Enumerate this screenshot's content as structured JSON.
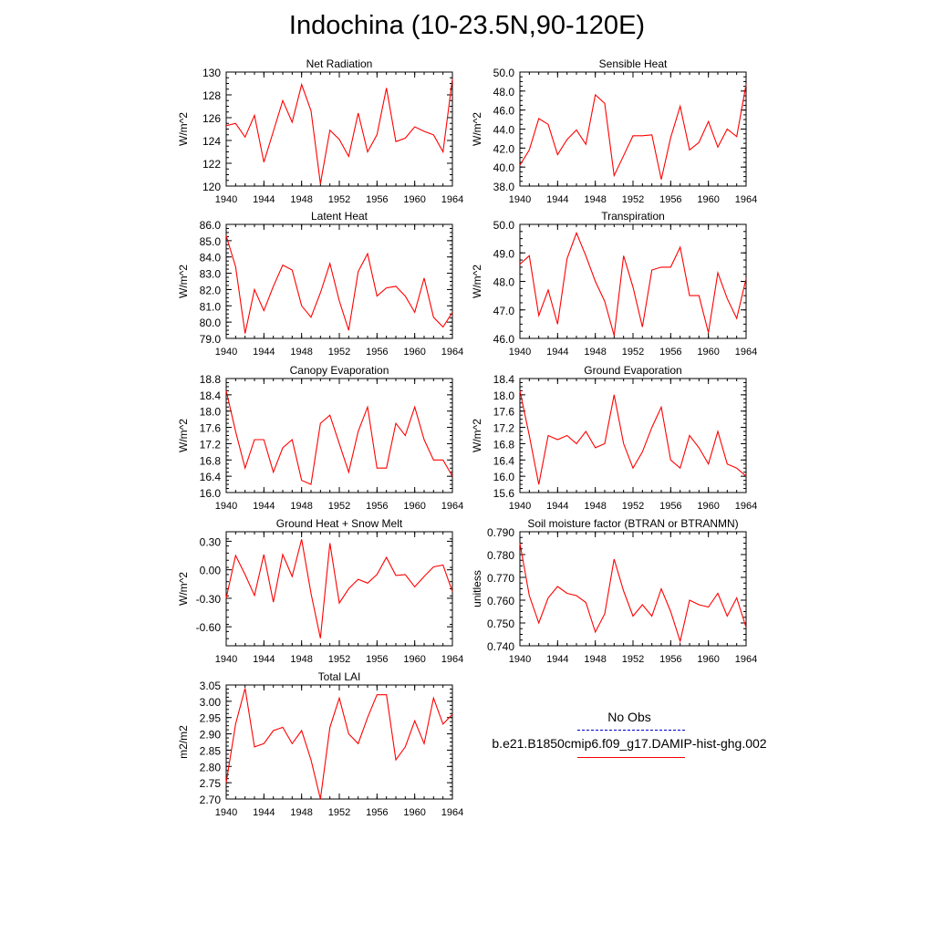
{
  "title": "Indochina (10-23.5N,90-120E)",
  "colors": {
    "series": "#ff0000",
    "obs": "#0000cc",
    "axis": "#000000"
  },
  "legend": {
    "obs_label": "No Obs",
    "model_label": "b.e21.B1850cmip6.f09_g17.DAMIP-hist-ghg.002"
  },
  "chart_data": [
    {
      "type": "line",
      "title": "Net Radiation",
      "ylabel": "W/m^2",
      "xlim": [
        1940,
        1964
      ],
      "xticks": [
        "1940",
        "1944",
        "1948",
        "1952",
        "1956",
        "1960",
        "1964"
      ],
      "ylim": [
        120,
        130
      ],
      "yticks": [
        "120",
        "122",
        "124",
        "126",
        "128",
        "130"
      ],
      "x": [
        1940,
        1941,
        1942,
        1943,
        1944,
        1945,
        1946,
        1947,
        1948,
        1949,
        1950,
        1951,
        1952,
        1953,
        1954,
        1955,
        1956,
        1957,
        1958,
        1959,
        1960,
        1961,
        1962,
        1963,
        1964
      ],
      "series": [
        {
          "values": [
            125.3,
            125.5,
            124.3,
            126.2,
            122.1,
            124.8,
            127.5,
            125.6,
            128.9,
            126.6,
            120.2,
            124.9,
            124.1,
            122.6,
            126.4,
            123.0,
            124.5,
            128.6,
            123.9,
            124.2,
            125.2,
            124.8,
            124.5,
            123.0,
            129.4
          ]
        }
      ]
    },
    {
      "type": "line",
      "title": "Sensible Heat",
      "ylabel": "W/m^2",
      "xlim": [
        1940,
        1964
      ],
      "xticks": [
        "1940",
        "1944",
        "1948",
        "1952",
        "1956",
        "1960",
        "1964"
      ],
      "ylim": [
        38,
        50
      ],
      "yticks": [
        "38.0",
        "40.0",
        "42.0",
        "44.0",
        "46.0",
        "48.0",
        "50.0"
      ],
      "x": [
        1940,
        1941,
        1942,
        1943,
        1944,
        1945,
        1946,
        1947,
        1948,
        1949,
        1950,
        1951,
        1952,
        1953,
        1954,
        1955,
        1956,
        1957,
        1958,
        1959,
        1960,
        1961,
        1962,
        1963,
        1964
      ],
      "series": [
        {
          "values": [
            40.2,
            41.8,
            45.1,
            44.5,
            41.3,
            42.9,
            43.9,
            42.4,
            47.6,
            46.7,
            39.1,
            41.2,
            43.3,
            43.3,
            43.4,
            38.7,
            43.1,
            46.4,
            41.8,
            42.6,
            44.8,
            42.1,
            44.0,
            43.2,
            48.7
          ]
        }
      ]
    },
    {
      "type": "line",
      "title": "Latent Heat",
      "ylabel": "W/m^2",
      "xlim": [
        1940,
        1964
      ],
      "xticks": [
        "1940",
        "1944",
        "1948",
        "1952",
        "1956",
        "1960",
        "1964"
      ],
      "ylim": [
        79,
        86
      ],
      "yticks": [
        "79.0",
        "80.0",
        "81.0",
        "82.0",
        "83.0",
        "84.0",
        "85.0",
        "86.0"
      ],
      "x": [
        1940,
        1941,
        1942,
        1943,
        1944,
        1945,
        1946,
        1947,
        1948,
        1949,
        1950,
        1951,
        1952,
        1953,
        1954,
        1955,
        1956,
        1957,
        1958,
        1959,
        1960,
        1961,
        1962,
        1963,
        1964
      ],
      "series": [
        {
          "values": [
            85.3,
            83.4,
            79.3,
            82.0,
            80.7,
            82.2,
            83.5,
            83.2,
            81.0,
            80.3,
            81.8,
            83.6,
            81.3,
            79.5,
            83.1,
            84.2,
            81.6,
            82.1,
            82.2,
            81.6,
            80.6,
            82.7,
            80.3,
            79.7,
            80.6
          ]
        }
      ]
    },
    {
      "type": "line",
      "title": "Transpiration",
      "ylabel": "W/m^2",
      "xlim": [
        1940,
        1964
      ],
      "xticks": [
        "1940",
        "1944",
        "1948",
        "1952",
        "1956",
        "1960",
        "1964"
      ],
      "ylim": [
        46,
        50
      ],
      "yticks": [
        "46.0",
        "47.0",
        "48.0",
        "49.0",
        "50.0"
      ],
      "x": [
        1940,
        1941,
        1942,
        1943,
        1944,
        1945,
        1946,
        1947,
        1948,
        1949,
        1950,
        1951,
        1952,
        1953,
        1954,
        1955,
        1956,
        1957,
        1958,
        1959,
        1960,
        1961,
        1962,
        1963,
        1964
      ],
      "series": [
        {
          "values": [
            48.6,
            48.9,
            46.8,
            47.7,
            46.5,
            48.8,
            49.7,
            48.9,
            48.0,
            47.3,
            46.1,
            48.9,
            47.8,
            46.4,
            48.4,
            48.5,
            48.5,
            49.2,
            47.5,
            47.5,
            46.2,
            48.3,
            47.4,
            46.7,
            48.1
          ]
        }
      ]
    },
    {
      "type": "line",
      "title": "Canopy Evaporation",
      "ylabel": "W/m^2",
      "xlim": [
        1940,
        1964
      ],
      "xticks": [
        "1940",
        "1944",
        "1948",
        "1952",
        "1956",
        "1960",
        "1964"
      ],
      "ylim": [
        16.0,
        18.8
      ],
      "yticks": [
        "16.0",
        "16.4",
        "16.8",
        "17.2",
        "17.6",
        "18.0",
        "18.4",
        "18.8"
      ],
      "x": [
        1940,
        1941,
        1942,
        1943,
        1944,
        1945,
        1946,
        1947,
        1948,
        1949,
        1950,
        1951,
        1952,
        1953,
        1954,
        1955,
        1956,
        1957,
        1958,
        1959,
        1960,
        1961,
        1962,
        1963,
        1964
      ],
      "series": [
        {
          "values": [
            18.5,
            17.5,
            16.6,
            17.3,
            17.3,
            16.5,
            17.1,
            17.3,
            16.3,
            16.2,
            17.7,
            17.9,
            17.2,
            16.5,
            17.5,
            18.1,
            16.6,
            16.6,
            17.7,
            17.4,
            18.1,
            17.3,
            16.8,
            16.8,
            16.4
          ]
        }
      ]
    },
    {
      "type": "line",
      "title": "Ground Evaporation",
      "ylabel": "W/m^2",
      "xlim": [
        1940,
        1964
      ],
      "xticks": [
        "1940",
        "1944",
        "1948",
        "1952",
        "1956",
        "1960",
        "1964"
      ],
      "ylim": [
        15.6,
        18.4
      ],
      "yticks": [
        "15.6",
        "16.0",
        "16.4",
        "16.8",
        "17.2",
        "17.6",
        "18.0",
        "18.4"
      ],
      "x": [
        1940,
        1941,
        1942,
        1943,
        1944,
        1945,
        1946,
        1947,
        1948,
        1949,
        1950,
        1951,
        1952,
        1953,
        1954,
        1955,
        1956,
        1957,
        1958,
        1959,
        1960,
        1961,
        1962,
        1963,
        1964
      ],
      "series": [
        {
          "values": [
            18.1,
            17.0,
            15.8,
            17.0,
            16.9,
            17.0,
            16.8,
            17.1,
            16.7,
            16.8,
            18.0,
            16.8,
            16.2,
            16.6,
            17.2,
            17.7,
            16.4,
            16.2,
            17.0,
            16.7,
            16.3,
            17.1,
            16.3,
            16.2,
            16.0
          ]
        }
      ]
    },
    {
      "type": "line",
      "title": "Ground Heat + Snow Melt",
      "ylabel": "W/m^2",
      "xlim": [
        1940,
        1964
      ],
      "xticks": [
        "1940",
        "1944",
        "1948",
        "1952",
        "1956",
        "1960",
        "1964"
      ],
      "ylim": [
        -0.8,
        0.4
      ],
      "yticks": [
        "-0.60",
        "-0.30",
        "0.00",
        "0.30"
      ],
      "ytick_values": [
        -0.6,
        -0.3,
        0.0,
        0.3
      ],
      "x": [
        1940,
        1941,
        1942,
        1943,
        1944,
        1945,
        1946,
        1947,
        1948,
        1949,
        1950,
        1951,
        1952,
        1953,
        1954,
        1955,
        1956,
        1957,
        1958,
        1959,
        1960,
        1961,
        1962,
        1963,
        1964
      ],
      "series": [
        {
          "values": [
            -0.3,
            0.15,
            -0.05,
            -0.27,
            0.16,
            -0.34,
            0.16,
            -0.07,
            0.32,
            -0.25,
            -0.72,
            0.28,
            -0.35,
            -0.2,
            -0.1,
            -0.14,
            -0.05,
            0.13,
            -0.06,
            -0.05,
            -0.18,
            -0.07,
            0.03,
            0.05,
            -0.23
          ]
        }
      ]
    },
    {
      "type": "line",
      "title": "Soil moisture factor (BTRAN or BTRANMN)",
      "ylabel": "unitless",
      "xlim": [
        1940,
        1964
      ],
      "xticks": [
        "1940",
        "1944",
        "1948",
        "1952",
        "1956",
        "1960",
        "1964"
      ],
      "ylim": [
        0.74,
        0.79
      ],
      "yticks": [
        "0.740",
        "0.750",
        "0.760",
        "0.770",
        "0.780",
        "0.790"
      ],
      "x": [
        1940,
        1941,
        1942,
        1943,
        1944,
        1945,
        1946,
        1947,
        1948,
        1949,
        1950,
        1951,
        1952,
        1953,
        1954,
        1955,
        1956,
        1957,
        1958,
        1959,
        1960,
        1961,
        1962,
        1963,
        1964
      ],
      "series": [
        {
          "values": [
            0.785,
            0.762,
            0.75,
            0.761,
            0.766,
            0.763,
            0.762,
            0.759,
            0.746,
            0.754,
            0.778,
            0.764,
            0.753,
            0.758,
            0.753,
            0.765,
            0.755,
            0.742,
            0.76,
            0.758,
            0.757,
            0.763,
            0.753,
            0.761,
            0.748
          ]
        }
      ]
    },
    {
      "type": "line",
      "title": "Total LAI",
      "ylabel": "m2/m2",
      "xlim": [
        1940,
        1964
      ],
      "xticks": [
        "1940",
        "1944",
        "1948",
        "1952",
        "1956",
        "1960",
        "1964"
      ],
      "ylim": [
        2.7,
        3.05
      ],
      "yticks": [
        "2.70",
        "2.75",
        "2.80",
        "2.85",
        "2.90",
        "2.95",
        "3.00",
        "3.05"
      ],
      "x": [
        1940,
        1941,
        1942,
        1943,
        1944,
        1945,
        1946,
        1947,
        1948,
        1949,
        1950,
        1951,
        1952,
        1953,
        1954,
        1955,
        1956,
        1957,
        1958,
        1959,
        1960,
        1961,
        1962,
        1963,
        1964
      ],
      "series": [
        {
          "values": [
            2.75,
            2.93,
            3.04,
            2.86,
            2.87,
            2.91,
            2.92,
            2.87,
            2.91,
            2.82,
            2.7,
            2.92,
            3.01,
            2.9,
            2.87,
            2.95,
            3.02,
            3.02,
            2.82,
            2.86,
            2.94,
            2.87,
            3.01,
            2.93,
            2.96
          ]
        }
      ]
    }
  ]
}
